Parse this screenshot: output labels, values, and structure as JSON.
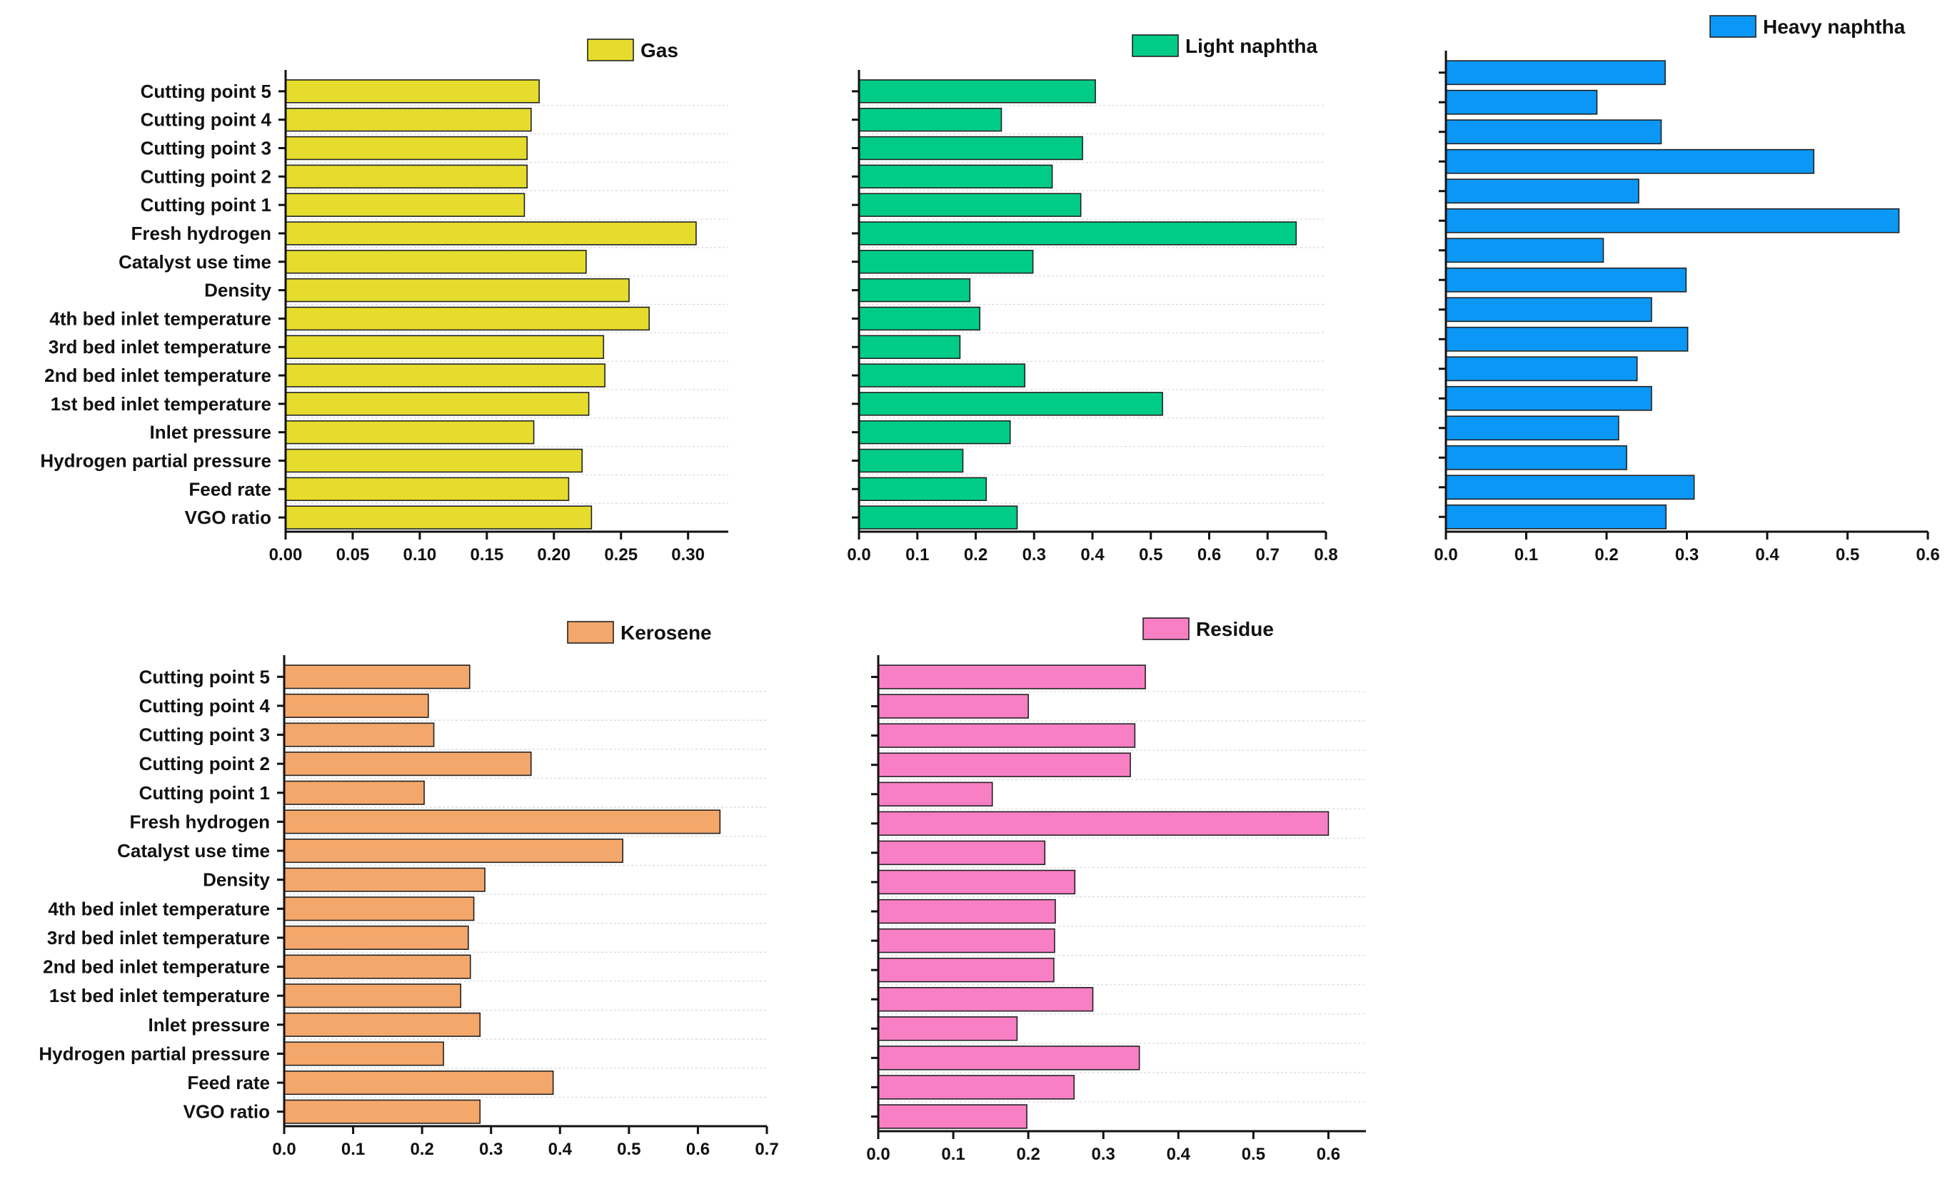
{
  "figure": {
    "background": "#ffffff",
    "bar_stroke": "#222222",
    "axis_color": "#111111",
    "grid_color": "#d9d9d9"
  },
  "chart_data": [
    {
      "type": "bar",
      "orientation": "horizontal",
      "legend": "Gas",
      "legend_position": "top-right",
      "color": "#e5dc2e",
      "categories": [
        "Cutting point 5",
        "Cutting point 4",
        "Cutting point 3",
        "Cutting point 2",
        "Cutting point 1",
        "Fresh hydrogen",
        "Catalyst use time",
        "Density",
        "4th bed inlet temperature",
        "3rd bed inlet temperature",
        "2nd bed inlet temperature",
        "1st bed inlet temperature",
        "Inlet pressure",
        "Hydrogen partial pressure",
        "Feed rate",
        "VGO ratio"
      ],
      "values": [
        0.189,
        0.183,
        0.18,
        0.18,
        0.178,
        0.306,
        0.224,
        0.256,
        0.271,
        0.237,
        0.238,
        0.226,
        0.185,
        0.221,
        0.211,
        0.228
      ],
      "show_category_labels": true,
      "xlim": [
        0,
        0.33
      ],
      "ticks": [
        0.0,
        0.05,
        0.1,
        0.15,
        0.2,
        0.25,
        0.3
      ],
      "tick_labels": [
        "0.00",
        "0.05",
        "0.10",
        "0.15",
        "0.20",
        "0.25",
        "0.30"
      ],
      "grid": true
    },
    {
      "type": "bar",
      "orientation": "horizontal",
      "legend": "Light naphtha",
      "legend_position": "top-right",
      "color": "#00cc88",
      "categories": [
        "Cutting point 5",
        "Cutting point 4",
        "Cutting point 3",
        "Cutting point 2",
        "Cutting point 1",
        "Fresh hydrogen",
        "Catalyst use time",
        "Density",
        "4th bed inlet temperature",
        "3rd bed inlet temperature",
        "2nd bed inlet temperature",
        "1st bed inlet temperature",
        "Inlet pressure",
        "Hydrogen partial pressure",
        "Feed rate",
        "VGO ratio"
      ],
      "values": [
        0.405,
        0.244,
        0.383,
        0.331,
        0.38,
        0.749,
        0.298,
        0.19,
        0.207,
        0.173,
        0.284,
        0.52,
        0.259,
        0.178,
        0.218,
        0.271
      ],
      "show_category_labels": false,
      "xlim": [
        0,
        0.8
      ],
      "ticks": [
        0.0,
        0.1,
        0.2,
        0.3,
        0.4,
        0.5,
        0.6,
        0.7,
        0.8
      ],
      "tick_labels": [
        "0.0",
        "0.1",
        "0.2",
        "0.3",
        "0.4",
        "0.5",
        "0.6",
        "0.7",
        "0.8"
      ],
      "grid": true
    },
    {
      "type": "bar",
      "orientation": "horizontal",
      "legend": "Heavy naphtha",
      "legend_position": "top-right",
      "color": "#0a97f5",
      "categories": [
        "Cutting point 5",
        "Cutting point 4",
        "Cutting point 3",
        "Cutting point 2",
        "Cutting point 1",
        "Fresh hydrogen",
        "Catalyst use time",
        "Density",
        "4th bed inlet temperature",
        "3rd bed inlet temperature",
        "2nd bed inlet temperature",
        "1st bed inlet temperature",
        "Inlet pressure",
        "Hydrogen partial pressure",
        "Feed rate",
        "VGO ratio"
      ],
      "values": [
        0.273,
        0.188,
        0.268,
        0.458,
        0.24,
        0.564,
        0.196,
        0.299,
        0.256,
        0.301,
        0.238,
        0.256,
        0.215,
        0.225,
        0.309,
        0.274
      ],
      "show_category_labels": false,
      "xlim": [
        0,
        0.6
      ],
      "ticks": [
        0.0,
        0.1,
        0.2,
        0.3,
        0.4,
        0.5,
        0.6
      ],
      "tick_labels": [
        "0.0",
        "0.1",
        "0.2",
        "0.3",
        "0.4",
        "0.5",
        "0.6"
      ],
      "grid": false
    },
    {
      "type": "bar",
      "orientation": "horizontal",
      "legend": "Kerosene",
      "legend_position": "top-right",
      "color": "#f4a76a",
      "categories": [
        "Cutting point 5",
        "Cutting point 4",
        "Cutting point 3",
        "Cutting point 2",
        "Cutting point 1",
        "Fresh hydrogen",
        "Catalyst use time",
        "Density",
        "4th bed inlet temperature",
        "3rd bed inlet temperature",
        "2nd bed inlet temperature",
        "1st bed inlet temperature",
        "Inlet pressure",
        "Hydrogen partial pressure",
        "Feed rate",
        "VGO ratio"
      ],
      "values": [
        0.269,
        0.209,
        0.217,
        0.358,
        0.203,
        0.632,
        0.491,
        0.291,
        0.275,
        0.267,
        0.27,
        0.256,
        0.284,
        0.231,
        0.39,
        0.284
      ],
      "show_category_labels": true,
      "xlim": [
        0,
        0.7
      ],
      "ticks": [
        0.0,
        0.1,
        0.2,
        0.3,
        0.4,
        0.5,
        0.6,
        0.7
      ],
      "tick_labels": [
        "0.0",
        "0.1",
        "0.2",
        "0.3",
        "0.4",
        "0.5",
        "0.6",
        "0.7"
      ],
      "grid": true
    },
    {
      "type": "bar",
      "orientation": "horizontal",
      "legend": "Residue",
      "legend_position": "top-right",
      "color": "#f97fc5",
      "categories": [
        "Cutting point 5",
        "Cutting point 4",
        "Cutting point 3",
        "Cutting point 2",
        "Cutting point 1",
        "Fresh hydrogen",
        "Catalyst use time",
        "Density",
        "4th bed inlet temperature",
        "3rd bed inlet temperature",
        "2nd bed inlet temperature",
        "1st bed inlet temperature",
        "Inlet pressure",
        "Hydrogen partial pressure",
        "Feed rate",
        "VGO ratio"
      ],
      "values": [
        0.356,
        0.2,
        0.342,
        0.336,
        0.152,
        0.6,
        0.222,
        0.262,
        0.236,
        0.235,
        0.234,
        0.286,
        0.185,
        0.348,
        0.261,
        0.198
      ],
      "show_category_labels": false,
      "xlim": [
        0,
        0.65
      ],
      "ticks": [
        0.0,
        0.1,
        0.2,
        0.3,
        0.4,
        0.5,
        0.6
      ],
      "tick_labels": [
        "0.0",
        "0.1",
        "0.2",
        "0.3",
        "0.4",
        "0.5",
        "0.6"
      ],
      "grid": true
    }
  ]
}
